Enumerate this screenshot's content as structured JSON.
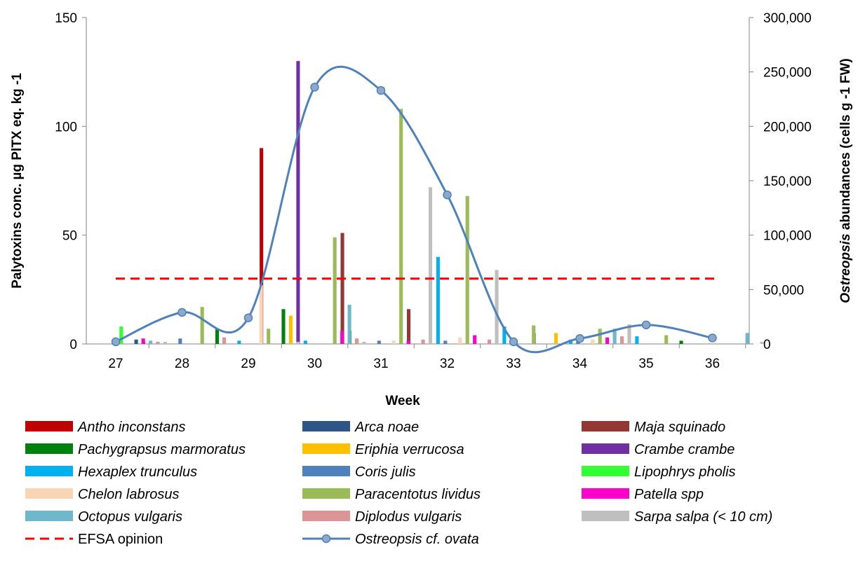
{
  "chart_data": {
    "type": "bar",
    "x_label": "Week",
    "y_left_label": "Palytoxins conc. µg PlTX eq. kg -1",
    "y_right_label_parts": [
      "Ostreopsis",
      " abundances  (cells g -1 FW)"
    ],
    "categories": [
      "27",
      "28",
      "29",
      "30",
      "31",
      "32",
      "33",
      "34",
      "35",
      "36"
    ],
    "y_left": {
      "min": 0,
      "max": 150,
      "ticks": [
        "0",
        "50",
        "100",
        "150"
      ],
      "tick_values": [
        0,
        50,
        100,
        150
      ]
    },
    "y_right": {
      "min": 0,
      "max": 300000,
      "ticks": [
        "0",
        "50,000",
        "100,000",
        "150,000",
        "200,000",
        "250,000",
        "300,000"
      ],
      "tick_values": [
        0,
        50000,
        100000,
        150000,
        200000,
        250000,
        300000
      ]
    },
    "grid": false,
    "legend_position": "bottom",
    "bar_series": [
      {
        "name": "Antho inconstans",
        "color": "#C00000",
        "values": [
          0,
          0,
          0,
          90,
          0,
          0,
          0,
          0,
          0,
          0
        ]
      },
      {
        "name": "Arca noae",
        "color": "#2F5487",
        "values": [
          0,
          2,
          0,
          0,
          0,
          0,
          0,
          5,
          0,
          0
        ]
      },
      {
        "name": "Maja squinado",
        "color": "#943634",
        "values": [
          0,
          1,
          0,
          0,
          51,
          16,
          0,
          0,
          0,
          0
        ]
      },
      {
        "name": "Pachygrapsus marmoratus",
        "color": "#00800F",
        "values": [
          0,
          0,
          7,
          16,
          6,
          0,
          0,
          0,
          0,
          1.5
        ]
      },
      {
        "name": "Eriphia verrucosa",
        "color": "#FFC000",
        "values": [
          0,
          0,
          0,
          13,
          1.5,
          0,
          0,
          5,
          0,
          0
        ]
      },
      {
        "name": "Crambe crambe",
        "color": "#7030A0",
        "values": [
          0,
          0,
          0,
          130,
          0,
          0,
          0,
          0,
          0,
          0
        ]
      },
      {
        "name": "Hexaplex trunculus",
        "color": "#00B0F0",
        "values": [
          0,
          0,
          1.5,
          1.5,
          0,
          40,
          8,
          2,
          3.5,
          0
        ]
      },
      {
        "name": "Coris julis",
        "color": "#4F81BD",
        "values": [
          0,
          2.5,
          0,
          0,
          1.5,
          1.5,
          0,
          2,
          0,
          0
        ]
      },
      {
        "name": "Lipophrys pholis",
        "color": "#33FF33",
        "values": [
          8,
          0,
          0,
          0,
          0,
          0,
          0,
          0,
          0,
          0
        ]
      },
      {
        "name": "Chelon labrosus",
        "color": "#FAD5B5",
        "values": [
          0,
          0,
          27,
          0,
          1.5,
          3,
          0,
          2,
          0,
          0
        ]
      },
      {
        "name": "Paracentotus lividus",
        "color": "#9BBB59",
        "values": [
          0,
          17,
          7,
          49,
          108,
          68,
          8.5,
          7,
          4,
          0
        ]
      },
      {
        "name": "Patella spp",
        "color": "#FF00CC",
        "values": [
          2.5,
          0,
          0,
          6,
          1.5,
          4,
          0,
          3,
          0,
          0
        ]
      },
      {
        "name": "Octopus vulgaris",
        "color": "#6FB8CC",
        "values": [
          1.5,
          0,
          0,
          18,
          0,
          0,
          0,
          7,
          0,
          5
        ]
      },
      {
        "name": "Diplodus vulgaris",
        "color": "#D99694",
        "values": [
          1,
          3,
          0,
          2.5,
          2,
          2,
          0,
          3.5,
          0,
          0
        ]
      },
      {
        "name": "Sarpa salpa (< 10 cm)",
        "color": "#BFBFBF",
        "values": [
          1,
          0,
          1,
          1,
          72,
          34,
          0,
          9,
          0,
          1
        ]
      }
    ],
    "efsa_line": {
      "name": "EFSA opinion",
      "color": "#FF0000",
      "value": 30,
      "axis": "left"
    },
    "abundance_series": {
      "name": "Ostreopsis cf. ovata",
      "color": "#4F81BD",
      "axis": "right",
      "x": [
        "27",
        "28",
        "29",
        "30",
        "31",
        "32",
        "33",
        "34",
        "35",
        "36"
      ],
      "values": [
        2000,
        29000,
        24000,
        236000,
        233000,
        137000,
        2000,
        5000,
        17500,
        5500
      ]
    }
  }
}
